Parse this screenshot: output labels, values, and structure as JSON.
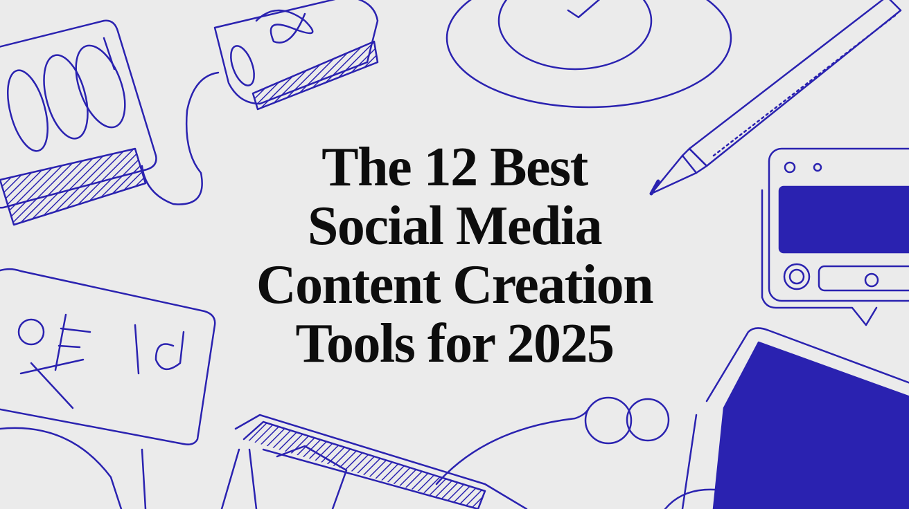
{
  "title": {
    "lines": [
      "The 12 Best",
      "Social Media",
      "Content Creation",
      "Tools for 2025"
    ]
  },
  "colors": {
    "background": "#ebebeb",
    "line_art": "#2a22b0",
    "title_text": "#0d0d0d"
  },
  "illustration": {
    "style": "hand-drawn blue line doodles",
    "icons": [
      "tablet-icon",
      "phone-icon",
      "circle-doodle-icon",
      "pen-icon",
      "browser-window-icon",
      "sign-board-icon",
      "laptop-icon",
      "tablet-screen-icon",
      "cable-icon"
    ]
  }
}
